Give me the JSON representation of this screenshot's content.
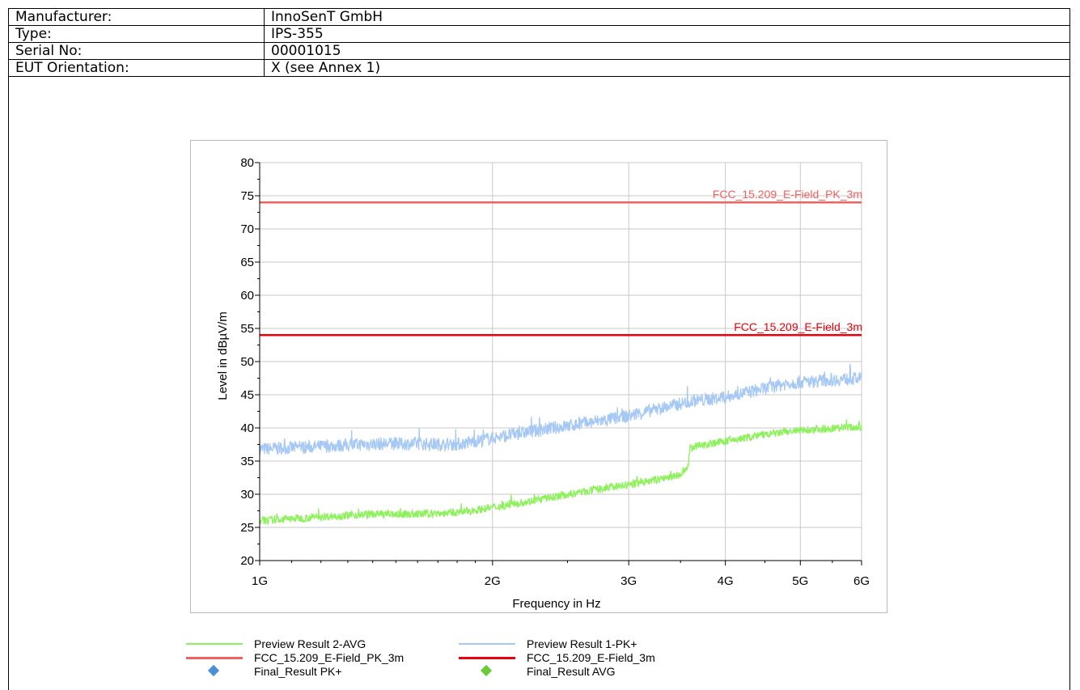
{
  "info_table": {
    "rows": [
      {
        "label": "Manufacturer:",
        "value": "InnoSenT GmbH"
      },
      {
        "label": "Type:",
        "value": "IPS-355"
      },
      {
        "label": "Serial No:",
        "value": "00001015"
      },
      {
        "label": "EUT Orientation:",
        "value": "X (see Annex 1)"
      }
    ]
  },
  "chart_data": {
    "type": "line",
    "xlabel": "Frequency in Hz",
    "ylabel": "Level in dBµV/m",
    "x_scale": "log",
    "xlim": [
      1000000000,
      6000000000
    ],
    "ylim": [
      20,
      80
    ],
    "x_ticks": [
      {
        "value": 1000000000,
        "label": "1G"
      },
      {
        "value": 2000000000,
        "label": "2G"
      },
      {
        "value": 3000000000,
        "label": "3G"
      },
      {
        "value": 4000000000,
        "label": "4G"
      },
      {
        "value": 5000000000,
        "label": "5G"
      },
      {
        "value": 6000000000,
        "label": "6G"
      }
    ],
    "y_ticks": [
      20,
      25,
      30,
      35,
      40,
      45,
      50,
      55,
      60,
      65,
      70,
      75,
      80
    ],
    "grid": true,
    "limit_lines": [
      {
        "name": "FCC_15.209_E-Field_PK_3m",
        "value": 74,
        "color": "#f26060"
      },
      {
        "name": "FCC_15.209_E-Field_3m",
        "value": 54,
        "color": "#e8000b"
      }
    ],
    "series": [
      {
        "name": "Preview Result 1-PK+",
        "color": "#a6c8f5",
        "x": [
          1000000000,
          1200000000,
          1400000000,
          1600000000,
          1800000000,
          2000000000,
          2200000000,
          2400000000,
          2600000000,
          2800000000,
          3000000000,
          3200000000,
          3400000000,
          3600000000,
          3800000000,
          4000000000,
          4200000000,
          4400000000,
          4600000000,
          4800000000,
          5000000000,
          5200000000,
          5400000000,
          5600000000,
          5800000000,
          6000000000
        ],
        "y": [
          36.8,
          37.2,
          37.6,
          37.6,
          37.5,
          38.5,
          39.3,
          40.0,
          40.6,
          41.2,
          41.8,
          42.6,
          43.3,
          44.0,
          44.3,
          44.6,
          45.2,
          45.7,
          46.2,
          46.7,
          46.9,
          47.0,
          47.2,
          47.3,
          47.4,
          47.4
        ],
        "noise": 1.0
      },
      {
        "name": "Preview Result 2-AVG",
        "color": "#8cf25a",
        "x": [
          1000000000,
          1200000000,
          1400000000,
          1600000000,
          1800000000,
          2000000000,
          2200000000,
          2400000000,
          2600000000,
          2800000000,
          3000000000,
          3200000000,
          3400000000,
          3500000000,
          3580000000,
          3600000000,
          3700000000,
          3800000000,
          4000000000,
          4200000000,
          4400000000,
          4600000000,
          4800000000,
          5000000000,
          5200000000,
          5400000000,
          5600000000,
          5800000000,
          6000000000
        ],
        "y": [
          26.0,
          26.6,
          27.0,
          27.0,
          27.2,
          28.0,
          28.8,
          29.6,
          30.3,
          30.9,
          31.4,
          32.0,
          32.6,
          32.9,
          34.0,
          37.0,
          37.3,
          37.6,
          38.0,
          38.4,
          38.8,
          39.1,
          39.4,
          39.6,
          39.8,
          39.9,
          40.0,
          40.1,
          40.1
        ],
        "noise": 0.6
      }
    ],
    "legend": {
      "placement": "bottom",
      "items": [
        {
          "label": "Preview Result 2-AVG",
          "kind": "line",
          "color": "#8cf25a"
        },
        {
          "label": "Preview Result 1-PK+",
          "kind": "line",
          "color": "#a6c8f5"
        },
        {
          "label": "FCC_15.209_E-Field_PK_3m",
          "kind": "line",
          "color": "#f26060"
        },
        {
          "label": "FCC_15.209_E-Field_3m",
          "kind": "line",
          "color": "#e8000b"
        },
        {
          "label": "Final_Result PK+",
          "kind": "diamond",
          "color": "#4a90d9"
        },
        {
          "label": "Final_Result AVG",
          "kind": "diamond",
          "color": "#6acb3a"
        }
      ]
    }
  }
}
